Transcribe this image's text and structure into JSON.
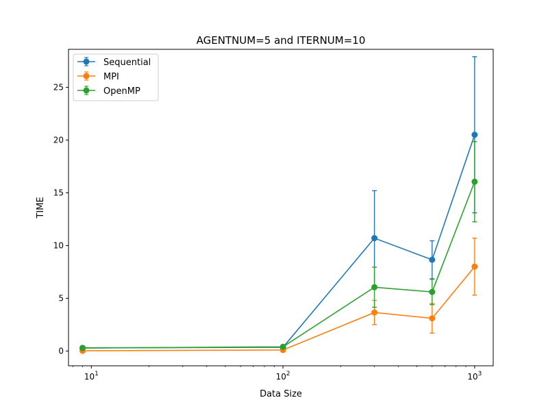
{
  "chart_data": {
    "type": "line",
    "title": "AGENTNUM=5 and ITERNUM=10",
    "xlabel": "Data Size",
    "ylabel": "TIME",
    "xscale": "log",
    "xlim": [
      7.6,
      1250
    ],
    "ylim": [
      -1.4,
      28.6
    ],
    "x": [
      9,
      100,
      300,
      600,
      1000
    ],
    "x_ticks": [
      {
        "value": 10,
        "base": "10",
        "exp": "1"
      },
      {
        "value": 100,
        "base": "10",
        "exp": "2"
      },
      {
        "value": 1000,
        "base": "10",
        "exp": "3"
      }
    ],
    "y_ticks": [
      0,
      5,
      10,
      15,
      20,
      25
    ],
    "grid": false,
    "legend_position": "top-left",
    "series": [
      {
        "name": "Sequential",
        "color": "#1f77b4",
        "values": [
          0.3,
          0.35,
          10.7,
          8.65,
          20.5
        ],
        "errors": [
          0.05,
          0.05,
          4.5,
          1.8,
          7.4
        ]
      },
      {
        "name": "MPI",
        "color": "#ff7f0e",
        "values": [
          0.02,
          0.1,
          3.65,
          3.1,
          8.0
        ],
        "errors": [
          0.03,
          0.05,
          1.15,
          1.4,
          2.7
        ]
      },
      {
        "name": "OpenMP",
        "color": "#2ca02c",
        "values": [
          0.28,
          0.4,
          6.05,
          5.6,
          16.05
        ],
        "errors": [
          0.04,
          0.05,
          1.9,
          1.2,
          3.8
        ]
      }
    ]
  }
}
